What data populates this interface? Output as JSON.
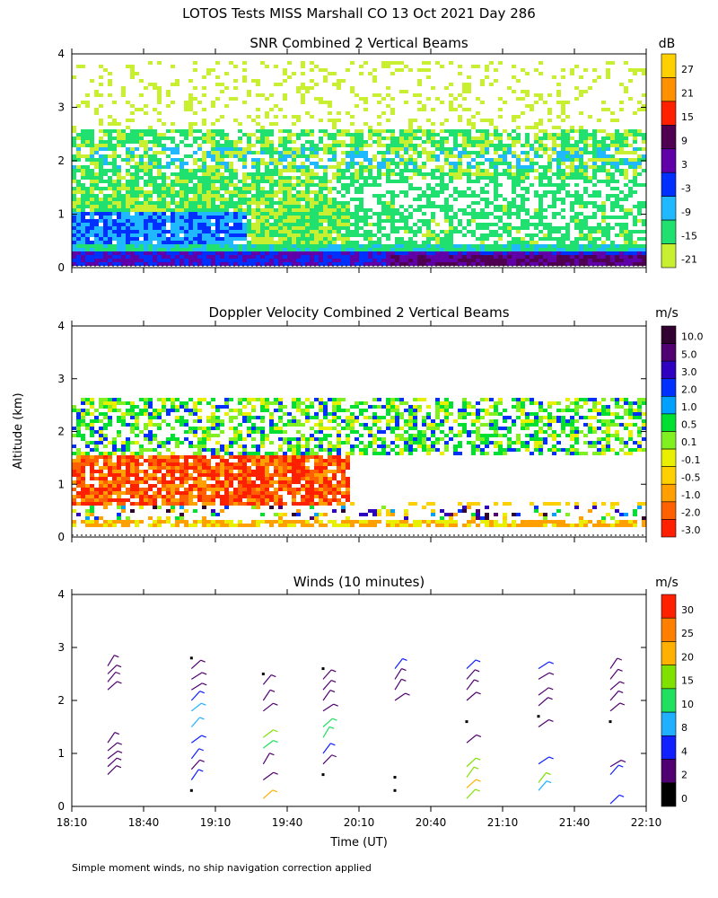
{
  "title": "LOTOS Tests MISS Marshall CO  13 Oct 2021 Day 286",
  "ylabel": "Altitude (km)",
  "xlabel": "Time (UT)",
  "footnote": "Simple moment winds, no ship navigation correction applied",
  "time_ticks": [
    "18:10",
    "18:40",
    "19:10",
    "19:40",
    "20:10",
    "20:40",
    "21:10",
    "21:40",
    "22:10"
  ],
  "altitude_ticks": [
    "0",
    "1",
    "2",
    "3",
    "4"
  ],
  "chart_data": [
    {
      "type": "heatmap",
      "title": "SNR Combined 2 Vertical Beams",
      "units": "dB",
      "x_range_hours": [
        18.1667,
        22.1667
      ],
      "ylim": [
        0,
        4
      ],
      "colorbar": {
        "labels": [
          "27",
          "21",
          "15",
          "9",
          "3",
          "-3",
          "-9",
          "-15",
          "-21"
        ],
        "colors": [
          "#ffd000",
          "#ff9000",
          "#ff2000",
          "#500050",
          "#6000a8",
          "#0030ff",
          "#20b8ff",
          "#20e070",
          "#c8f030"
        ]
      },
      "layers": [
        {
          "name": "high-sparse",
          "band_km": [
            2.9,
            3.9
          ],
          "value": -21
        },
        {
          "name": "upper-layer",
          "band_km": [
            1.7,
            2.6
          ],
          "value": -15
        },
        {
          "name": "upper-core",
          "band_km": [
            1.9,
            2.3
          ],
          "value": -9
        },
        {
          "name": "boundary-layer",
          "band_km": [
            0.4,
            1.4
          ],
          "value": -15
        },
        {
          "name": "boundary-core",
          "band_km": [
            0.45,
            1.2
          ],
          "value": -9
        },
        {
          "name": "ground-clutter",
          "band_km": [
            0.25,
            0.5
          ],
          "value": 3
        }
      ]
    },
    {
      "type": "heatmap",
      "title": "Doppler Velocity Combined 2 Vertical Beams",
      "units": "m/s",
      "x_range_hours": [
        18.1667,
        22.1667
      ],
      "ylim": [
        0,
        4
      ],
      "colorbar": {
        "labels": [
          "10.0",
          "5.0",
          "3.0",
          "2.0",
          "1.0",
          "0.5",
          "0.1",
          "-0.1",
          "-0.5",
          "-1.0",
          "-2.0",
          "-3.0"
        ],
        "colors": [
          "#300030",
          "#500070",
          "#3000c0",
          "#0030ff",
          "#00a0ff",
          "#00e030",
          "#80f020",
          "#e8f000",
          "#ffd000",
          "#ffa000",
          "#ff6000",
          "#ff2000"
        ]
      },
      "layers": [
        {
          "name": "upper-layer",
          "band_km": [
            1.6,
            2.7
          ],
          "value": 0.5
        },
        {
          "name": "convective-updrafts",
          "band_km": [
            0.6,
            1.6
          ],
          "value": -1.0
        },
        {
          "name": "surface-layer",
          "band_km": [
            0.25,
            0.6
          ],
          "value": -0.5
        }
      ]
    },
    {
      "type": "wind-barbs",
      "title": "Winds (10 minutes)",
      "units": "m/s",
      "x_range_hours": [
        18.1667,
        22.1667
      ],
      "ylim": [
        0,
        4
      ],
      "colorbar": {
        "labels": [
          "30",
          "25",
          "20",
          "15",
          "10",
          "8",
          "4",
          "2",
          "0"
        ],
        "colors": [
          "#ff2000",
          "#ff8000",
          "#ffb000",
          "#80e000",
          "#20e060",
          "#20b0ff",
          "#1020ff",
          "#500070",
          "#000000"
        ]
      },
      "profiles": [
        {
          "time": "18:25",
          "heights_km": [
            0.6,
            0.75,
            0.9,
            1.05,
            1.2,
            2.2,
            2.35,
            2.5,
            2.65
          ],
          "speeds": [
            2,
            2,
            3,
            3,
            3,
            3,
            3,
            3,
            3
          ]
        },
        {
          "time": "19:00",
          "heights_km": [
            0.3,
            0.5,
            0.7,
            0.9,
            1.2,
            1.5,
            1.8,
            2.0,
            2.2,
            2.4,
            2.6,
            2.8
          ],
          "speeds": [
            0,
            4,
            3,
            4,
            4,
            8,
            8,
            4,
            3,
            3,
            3,
            0
          ]
        },
        {
          "time": "19:30",
          "heights_km": [
            0.15,
            0.5,
            0.8,
            1.1,
            1.3,
            1.8,
            2.0,
            2.3,
            2.5
          ],
          "speeds": [
            20,
            3,
            3,
            10,
            15,
            2,
            3,
            3,
            0
          ]
        },
        {
          "time": "19:55",
          "heights_km": [
            0.6,
            0.8,
            1.0,
            1.3,
            1.5,
            1.8,
            2.0,
            2.2,
            2.4,
            2.6
          ],
          "speeds": [
            0,
            3,
            4,
            10,
            10,
            3,
            3,
            3,
            3,
            0
          ]
        },
        {
          "time": "20:25",
          "heights_km": [
            0.3,
            0.55,
            2.0,
            2.2,
            2.4,
            2.6
          ],
          "speeds": [
            0,
            0,
            3,
            3,
            3,
            4
          ]
        },
        {
          "time": "20:55",
          "heights_km": [
            0.15,
            0.35,
            0.55,
            0.75,
            1.2,
            1.6,
            2.0,
            2.2,
            2.4,
            2.6
          ],
          "speeds": [
            15,
            20,
            15,
            18,
            3,
            0,
            3,
            3,
            3,
            4
          ]
        },
        {
          "time": "21:25",
          "heights_km": [
            0.3,
            0.45,
            0.8,
            1.5,
            1.7,
            1.9,
            2.1,
            2.4,
            2.6
          ],
          "speeds": [
            8,
            15,
            4,
            3,
            0,
            3,
            3,
            3,
            4
          ]
        },
        {
          "time": "21:55",
          "heights_km": [
            0.05,
            0.6,
            0.75,
            1.6,
            1.8,
            2.0,
            2.2,
            2.4,
            2.6
          ],
          "speeds": [
            4,
            4,
            3,
            0,
            3,
            3,
            3,
            3,
            3
          ]
        }
      ]
    }
  ]
}
